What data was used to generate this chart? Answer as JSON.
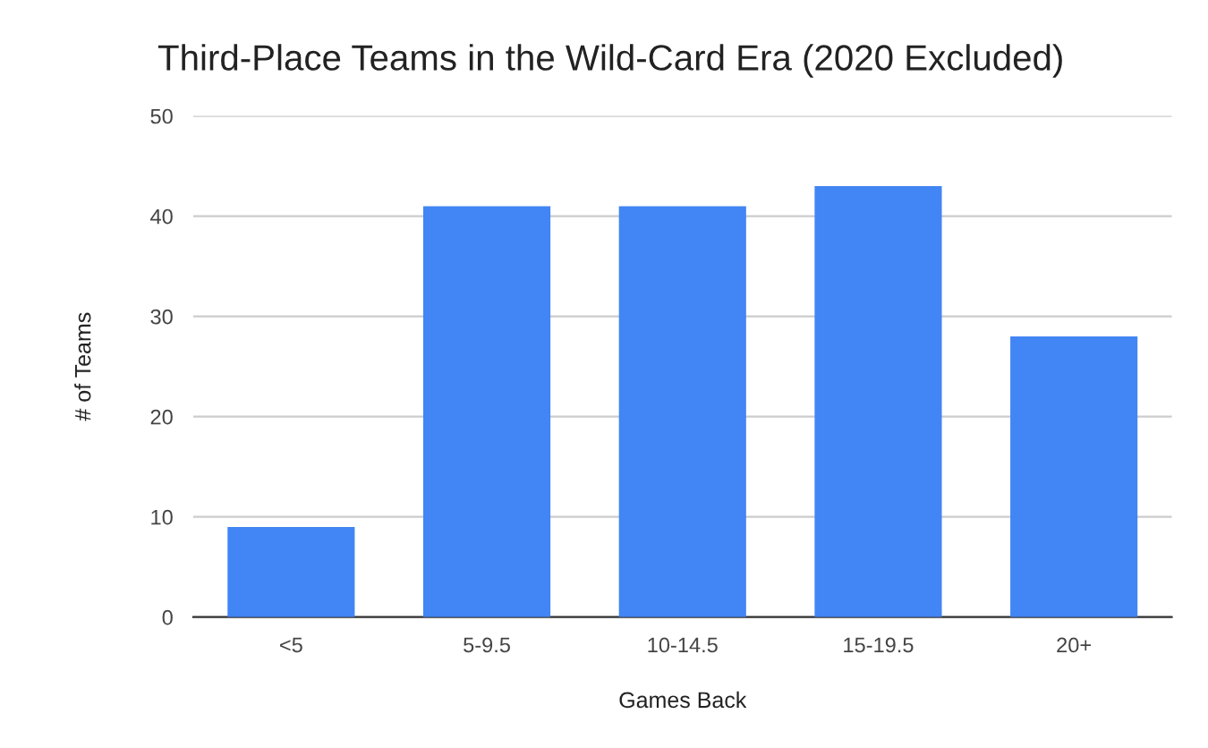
{
  "chart_data": {
    "type": "bar",
    "title": "Third-Place Teams in the Wild-Card Era (2020 Excluded)",
    "xlabel": "Games Back",
    "ylabel": "# of Teams",
    "categories": [
      "<5",
      "5-9.5",
      "10-14.5",
      "15-19.5",
      "20+"
    ],
    "values": [
      9,
      41,
      41,
      43,
      28
    ],
    "color": "#4285f4",
    "ylim": [
      0,
      50
    ],
    "yticks": [
      0,
      10,
      20,
      30,
      40,
      50
    ],
    "grid": "y"
  }
}
